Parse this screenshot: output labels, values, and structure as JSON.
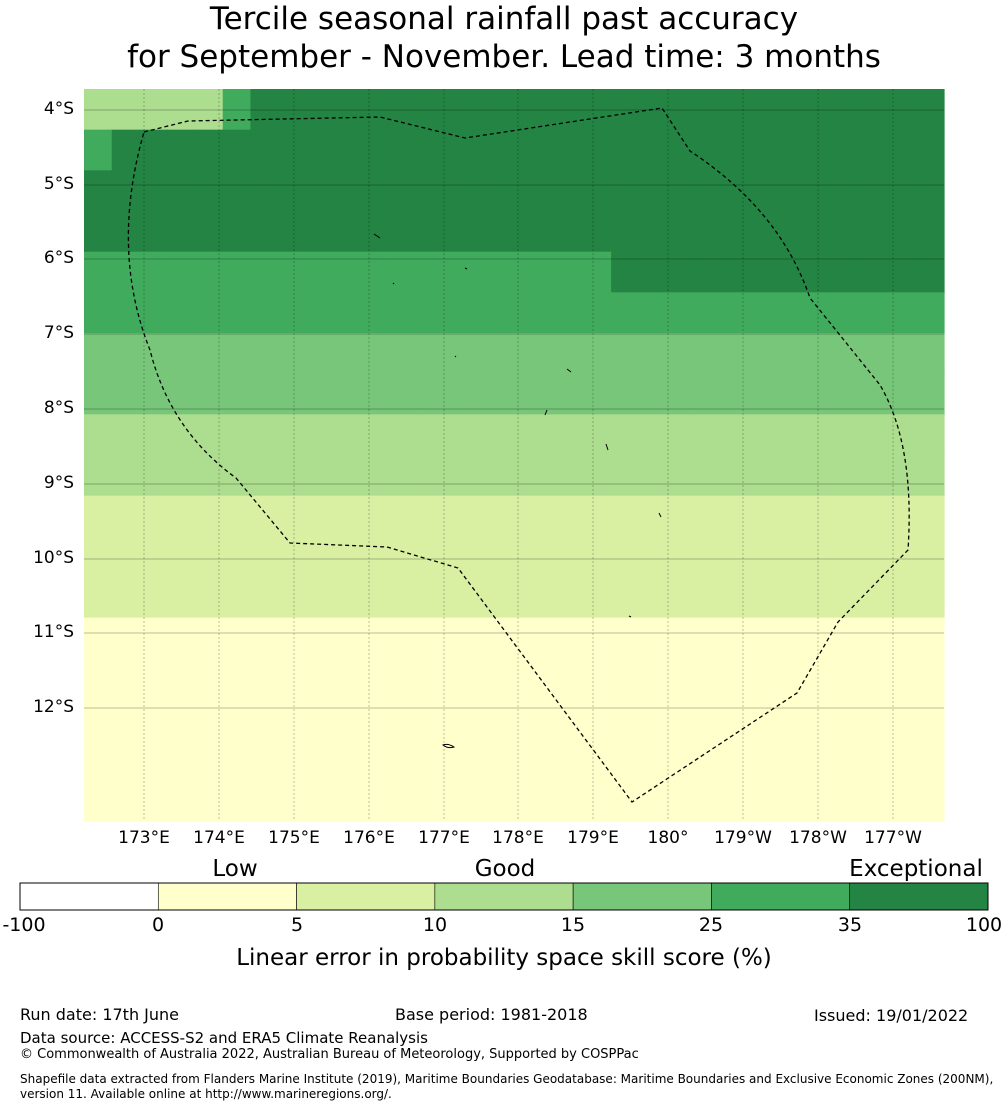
{
  "title": {
    "line1": "Tercile seasonal rainfall past accuracy",
    "line2": "for September - November. Lead time: 3 months"
  },
  "map": {
    "lat_labels": [
      "4°S",
      "5°S",
      "6°S",
      "7°S",
      "8°S",
      "9°S",
      "10°S",
      "11°S",
      "12°S"
    ],
    "lon_labels": [
      "173°E",
      "174°E",
      "175°E",
      "176°E",
      "177°E",
      "178°E",
      "179°E",
      "180°",
      "179°W",
      "178°W",
      "177°W"
    ],
    "grid_cells": [
      [
        3,
        3,
        3,
        3,
        3,
        5,
        6,
        6,
        6,
        6,
        6,
        6,
        6,
        6,
        6,
        6,
        6,
        6,
        6,
        6,
        6,
        6,
        6,
        6,
        6,
        6,
        6,
        6,
        6,
        6,
        6
      ],
      [
        5,
        6,
        6,
        6,
        6,
        6,
        6,
        6,
        6,
        6,
        6,
        6,
        6,
        6,
        6,
        6,
        6,
        6,
        6,
        6,
        6,
        6,
        6,
        6,
        6,
        6,
        6,
        6,
        6,
        6,
        6
      ],
      [
        6,
        6,
        6,
        6,
        6,
        6,
        6,
        6,
        6,
        6,
        6,
        6,
        6,
        6,
        6,
        6,
        6,
        6,
        6,
        6,
        6,
        6,
        6,
        6,
        6,
        6,
        6,
        6,
        6,
        6,
        6
      ],
      [
        6,
        6,
        6,
        6,
        6,
        6,
        6,
        6,
        6,
        6,
        6,
        6,
        6,
        6,
        6,
        6,
        6,
        6,
        6,
        6,
        6,
        6,
        6,
        6,
        6,
        6,
        6,
        6,
        6,
        6,
        6
      ],
      [
        5,
        5,
        5,
        5,
        5,
        5,
        5,
        5,
        5,
        5,
        5,
        5,
        5,
        5,
        5,
        5,
        5,
        5,
        5,
        6,
        6,
        6,
        6,
        6,
        6,
        6,
        6,
        6,
        6,
        6,
        6
      ],
      [
        5,
        5,
        5,
        5,
        5,
        5,
        5,
        5,
        5,
        5,
        5,
        5,
        5,
        5,
        5,
        5,
        5,
        5,
        5,
        5,
        5,
        5,
        5,
        5,
        5,
        5,
        5,
        5,
        5,
        5,
        5
      ],
      [
        4,
        4,
        4,
        4,
        4,
        4,
        4,
        4,
        4,
        4,
        4,
        4,
        4,
        4,
        4,
        4,
        4,
        4,
        4,
        4,
        4,
        4,
        4,
        4,
        4,
        4,
        4,
        4,
        4,
        4,
        4
      ],
      [
        4,
        4,
        4,
        4,
        4,
        4,
        4,
        4,
        4,
        4,
        4,
        4,
        4,
        4,
        4,
        4,
        4,
        4,
        4,
        4,
        4,
        4,
        4,
        4,
        4,
        4,
        4,
        4,
        4,
        4,
        4
      ],
      [
        3,
        3,
        3,
        3,
        3,
        3,
        3,
        3,
        3,
        3,
        3,
        3,
        3,
        3,
        3,
        3,
        3,
        3,
        3,
        3,
        3,
        3,
        3,
        3,
        3,
        3,
        3,
        3,
        3,
        3,
        3
      ],
      [
        3,
        3,
        3,
        3,
        3,
        3,
        3,
        3,
        3,
        3,
        3,
        3,
        3,
        3,
        3,
        3,
        3,
        3,
        3,
        3,
        3,
        3,
        3,
        3,
        3,
        3,
        3,
        3,
        3,
        3,
        3
      ],
      [
        2,
        2,
        2,
        2,
        2,
        2,
        2,
        2,
        2,
        2,
        2,
        2,
        2,
        2,
        2,
        2,
        2,
        2,
        2,
        2,
        2,
        2,
        2,
        2,
        2,
        2,
        2,
        2,
        2,
        2,
        2
      ],
      [
        2,
        2,
        2,
        2,
        2,
        2,
        2,
        2,
        2,
        2,
        2,
        2,
        2,
        2,
        2,
        2,
        2,
        2,
        2,
        2,
        2,
        2,
        2,
        2,
        2,
        2,
        2,
        2,
        2,
        2,
        2
      ],
      [
        2,
        2,
        2,
        2,
        2,
        2,
        2,
        2,
        2,
        2,
        2,
        2,
        2,
        2,
        2,
        2,
        2,
        2,
        2,
        2,
        2,
        2,
        2,
        2,
        2,
        2,
        2,
        2,
        2,
        2,
        2
      ],
      [
        1,
        1,
        1,
        1,
        1,
        1,
        1,
        1,
        1,
        1,
        1,
        1,
        1,
        1,
        1,
        1,
        1,
        1,
        1,
        1,
        1,
        1,
        1,
        1,
        1,
        1,
        1,
        1,
        1,
        1,
        1
      ],
      [
        1,
        1,
        1,
        1,
        1,
        1,
        1,
        1,
        1,
        1,
        1,
        1,
        1,
        1,
        1,
        1,
        1,
        1,
        1,
        1,
        1,
        1,
        1,
        1,
        1,
        1,
        1,
        1,
        1,
        1,
        1
      ],
      [
        1,
        1,
        1,
        1,
        1,
        1,
        1,
        1,
        1,
        1,
        1,
        1,
        1,
        1,
        1,
        1,
        1,
        1,
        1,
        1,
        1,
        1,
        1,
        1,
        1,
        1,
        1,
        1,
        1,
        1,
        1
      ],
      [
        1,
        1,
        1,
        1,
        1,
        1,
        1,
        1,
        1,
        1,
        1,
        1,
        1,
        1,
        1,
        1,
        1,
        1,
        1,
        1,
        1,
        1,
        1,
        1,
        1,
        1,
        1,
        1,
        1,
        1,
        1
      ],
      [
        1,
        1,
        1,
        1,
        1,
        1,
        1,
        1,
        1,
        1,
        1,
        1,
        1,
        1,
        1,
        1,
        1,
        1,
        1,
        1,
        1,
        1,
        1,
        1,
        1,
        1,
        1,
        1,
        1,
        1,
        1
      ]
    ]
  },
  "colorbar": {
    "category_labels": [
      "Low",
      "Good",
      "Exceptional"
    ],
    "tick_labels": [
      "-100",
      "0",
      "5",
      "10",
      "15",
      "25",
      "35",
      "100"
    ],
    "colors": [
      "#ffffff",
      "#ffffcc",
      "#d9f0a3",
      "#addd8e",
      "#78c679",
      "#41ab5d",
      "#238443"
    ],
    "label": "Linear error in probability space skill score (%)"
  },
  "footer": {
    "run_date": "Run date: 17th June",
    "base_period": "Base period: 1981-2018",
    "issued": "Issued: 19/01/2022",
    "data_source": "Data source: ACCESS-S2 and ERA5 Climate Reanalysis",
    "copyright": "© Commonwealth of Australia 2022, Australian Bureau of Meteorology, Supported by COSPPac",
    "shapefile_line1": "Shapefile data extracted from Flanders Marine Institute (2019), Maritime Boundaries Geodatabase: Maritime Boundaries and Exclusive Economic Zones (200NM),",
    "shapefile_line2": "version 11. Available online at http://www.marineregions.org/."
  }
}
